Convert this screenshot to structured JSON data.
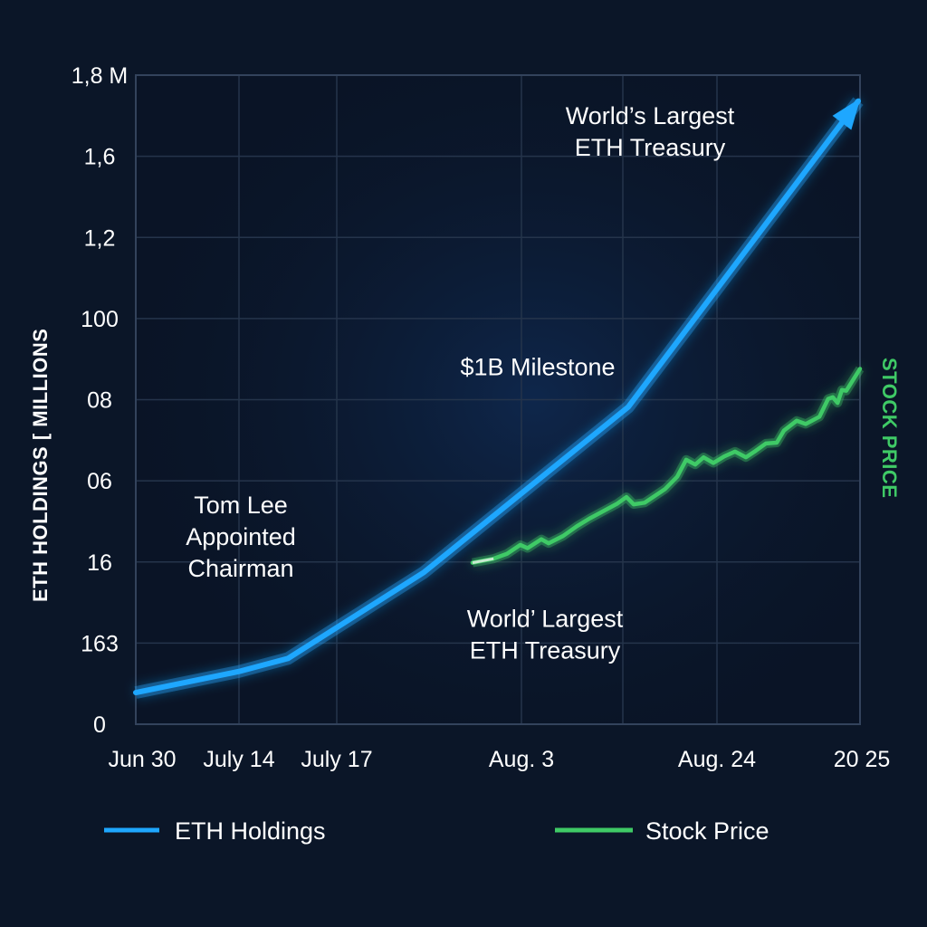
{
  "chart_data": {
    "type": "line",
    "title": "",
    "ylabel": "ETH HOLDINGS [ MILLIONS",
    "y2label": "STOCK PRICE",
    "xlabel": "",
    "grid": true,
    "legend_position": "bottom",
    "y_ticks": [
      {
        "label": "0",
        "pos": 0
      },
      {
        "label": "163",
        "pos": 1
      },
      {
        "label": "16",
        "pos": 2
      },
      {
        "label": "06",
        "pos": 3
      },
      {
        "label": "08",
        "pos": 4
      },
      {
        "label": "100",
        "pos": 5
      },
      {
        "label": "1,2",
        "pos": 6
      },
      {
        "label": "1,6",
        "pos": 7
      },
      {
        "label": "1,8 M",
        "pos": 8
      }
    ],
    "ylim": [
      0,
      8
    ],
    "x_ticks": [
      {
        "label": "Jun 30",
        "pos": 0
      },
      {
        "label": "July 14",
        "pos": 14.25
      },
      {
        "label": "July 17",
        "pos": 27.75
      },
      {
        "label": "Aug. 3",
        "pos": 53.25
      },
      {
        "label": "Aug. 24",
        "pos": 80.25
      },
      {
        "label": "20 25",
        "pos": 100
      }
    ],
    "x_gridlines": [
      0,
      14.25,
      27.75,
      53.25,
      67.25,
      80.25,
      100
    ],
    "xlim": [
      0,
      100
    ],
    "series": [
      {
        "name": "ETH Holdings",
        "color": "#1ea7ff",
        "arrow_end": true,
        "points": [
          [
            0,
            0.39
          ],
          [
            14.25,
            0.65
          ],
          [
            21,
            0.81
          ],
          [
            39.75,
            1.87
          ],
          [
            68,
            3.91
          ],
          [
            99.75,
            7.68
          ]
        ]
      },
      {
        "name": "Stock Price",
        "color": "#3fca66",
        "points": [
          [
            46.5,
            1.99
          ],
          [
            49.4,
            2.04
          ],
          [
            51.25,
            2.1
          ],
          [
            53.1,
            2.21
          ],
          [
            54.1,
            2.17
          ],
          [
            56,
            2.28
          ],
          [
            57,
            2.23
          ],
          [
            59,
            2.32
          ],
          [
            60.9,
            2.44
          ],
          [
            62.75,
            2.54
          ],
          [
            65.25,
            2.66
          ],
          [
            66.5,
            2.72
          ],
          [
            67.75,
            2.8
          ],
          [
            68.75,
            2.71
          ],
          [
            70.25,
            2.73
          ],
          [
            73.1,
            2.9
          ],
          [
            74.75,
            3.05
          ],
          [
            76,
            3.26
          ],
          [
            77.25,
            3.2
          ],
          [
            78.4,
            3.29
          ],
          [
            79.75,
            3.22
          ],
          [
            81.25,
            3.3
          ],
          [
            82.75,
            3.36
          ],
          [
            84.25,
            3.29
          ],
          [
            85.6,
            3.37
          ],
          [
            87,
            3.46
          ],
          [
            88.5,
            3.47
          ],
          [
            89.5,
            3.62
          ],
          [
            91.25,
            3.74
          ],
          [
            92.5,
            3.7
          ],
          [
            94.4,
            3.79
          ],
          [
            95.6,
            4.01
          ],
          [
            96.25,
            4.03
          ],
          [
            96.9,
            3.96
          ],
          [
            97.5,
            4.12
          ],
          [
            98.1,
            4.11
          ],
          [
            100,
            4.38
          ]
        ]
      }
    ],
    "annotations": [
      {
        "lines": [
          "World’s Largest",
          "ETH Treasury"
        ],
        "x": 71,
        "y": 7.4
      },
      {
        "lines": [
          "$1B Milestone"
        ],
        "x": 55.5,
        "y": 4.3
      },
      {
        "lines": [
          "Tom Lee",
          "Appointed",
          "Chairman"
        ],
        "x": 14.5,
        "y": 2.6
      },
      {
        "lines": [
          "World’ Largest",
          "ETH Treasury"
        ],
        "x": 56.5,
        "y": 1.2
      }
    ]
  },
  "legend": {
    "items": [
      {
        "label": "ETH Holdings",
        "color": "#1ea7ff"
      },
      {
        "label": "Stock Price",
        "color": "#3fca66"
      }
    ]
  }
}
